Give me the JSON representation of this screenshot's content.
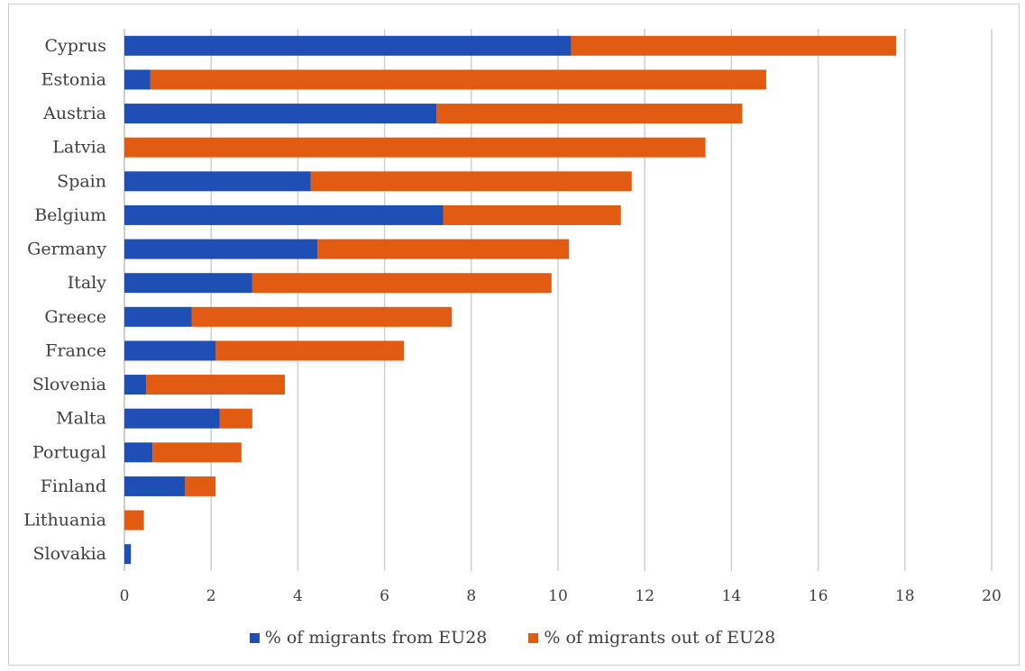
{
  "chart_data": {
    "type": "bar",
    "orientation": "horizontal",
    "stacked": true,
    "categories": [
      "Cyprus",
      "Estonia",
      "Austria",
      "Latvia",
      "Spain",
      "Belgium",
      "Germany",
      "Italy",
      "Greece",
      "France",
      "Slovenia",
      "Malta",
      "Portugal",
      "Finland",
      "Lithuania",
      "Slovakia"
    ],
    "series": [
      {
        "name": "% of migrants from EU28",
        "color": "#1f4eb4",
        "values": [
          10.3,
          0.6,
          7.2,
          0.0,
          4.3,
          7.35,
          4.45,
          2.95,
          1.55,
          2.1,
          0.5,
          2.2,
          0.65,
          1.4,
          0.0,
          0.15
        ]
      },
      {
        "name": "% of migrants out of EU28",
        "color": "#e25b12",
        "values": [
          7.5,
          14.2,
          7.05,
          13.4,
          7.4,
          4.1,
          5.8,
          6.9,
          6.0,
          4.35,
          3.2,
          0.75,
          2.05,
          0.7,
          0.45,
          0.0
        ]
      }
    ],
    "xlim": [
      0,
      20
    ],
    "xticks": [
      "0",
      "2",
      "4",
      "6",
      "8",
      "10",
      "12",
      "14",
      "16",
      "18",
      "20"
    ],
    "grid": "vertical",
    "legend_position": "bottom"
  }
}
